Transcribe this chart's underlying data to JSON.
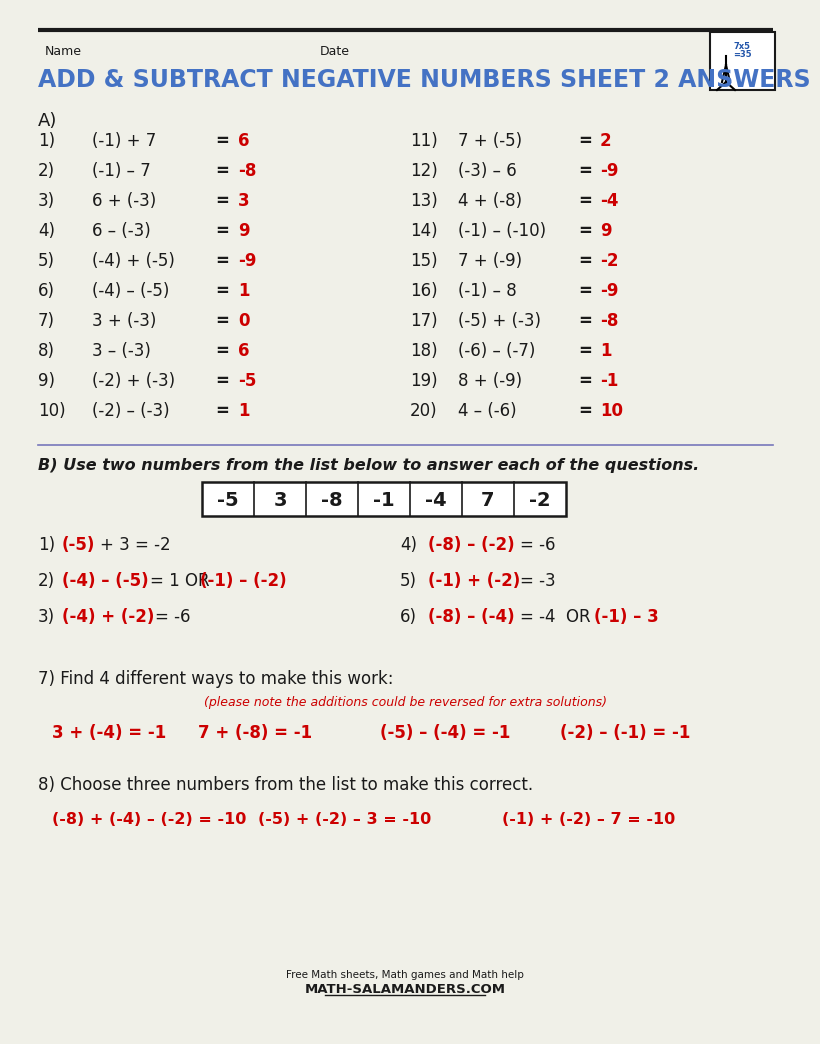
{
  "bg_color": "#f0f0e8",
  "title": "ADD & SUBTRACT NEGATIVE NUMBERS SHEET 2 ANSWERS",
  "title_color": "#4472c4",
  "black": "#1a1a1a",
  "red": "#cc0000",
  "problems_left": [
    [
      "1)",
      "(-1) + 7",
      "6"
    ],
    [
      "2)",
      "(-1) – 7",
      "-8"
    ],
    [
      "3)",
      "6 + (-3)",
      "3"
    ],
    [
      "4)",
      "6 – (-3)",
      "9"
    ],
    [
      "5)",
      "(-4) + (-5)",
      "-9"
    ],
    [
      "6)",
      "(-4) – (-5)",
      "1"
    ],
    [
      "7)",
      "3 + (-3)",
      "0"
    ],
    [
      "8)",
      "3 – (-3)",
      "6"
    ],
    [
      "9)",
      "(-2) + (-3)",
      "-5"
    ],
    [
      "10)",
      "(-2) – (-3)",
      "1"
    ]
  ],
  "problems_right": [
    [
      "11)",
      "7 + (-5)",
      "2"
    ],
    [
      "12)",
      "(-3) – 6",
      "-9"
    ],
    [
      "13)",
      "4 + (-8)",
      "-4"
    ],
    [
      "14)",
      "(-1) – (-10)",
      "9"
    ],
    [
      "15)",
      "7 + (-9)",
      "-2"
    ],
    [
      "16)",
      "(-1) – 8",
      "-9"
    ],
    [
      "17)",
      "(-5) + (-3)",
      "-8"
    ],
    [
      "18)",
      "(-6) – (-7)",
      "1"
    ],
    [
      "19)",
      "8 + (-9)",
      "-1"
    ],
    [
      "20)",
      "4 – (-6)",
      "10"
    ]
  ],
  "number_list": [
    "-5",
    "3",
    "-8",
    "-1",
    "-4",
    "7",
    "-2"
  ],
  "q7_answers": [
    "3 + (-4) = -1",
    "7 + (-8) = -1",
    "(-5) – (-4) = -1",
    "(-2) – (-1) = -1"
  ],
  "q8_answers": [
    "(-8) + (-4) – (-2) = -10",
    "(-5) + (-2) – 3 = -10",
    "(-1) + (-2) – 7 = -10"
  ]
}
